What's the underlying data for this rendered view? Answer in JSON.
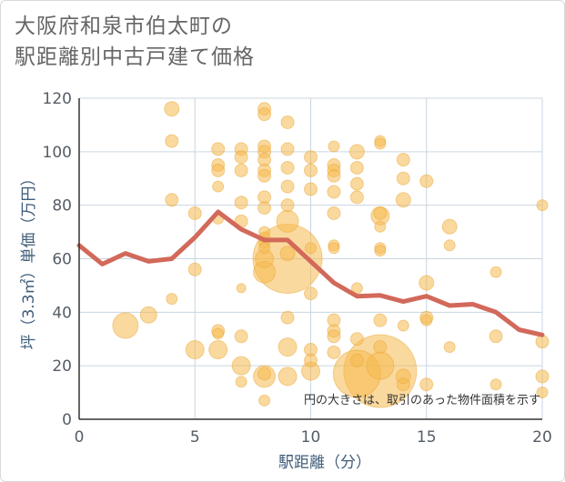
{
  "title": {
    "line1": "大阪府和泉市伯太町の",
    "line2": "駅距離別中古戸建て価格"
  },
  "colors": {
    "bubble_fill": "#f5b94f",
    "bubble_stroke": "#e9a73a",
    "line": "#d2695a",
    "grid": "#c9d6e0",
    "axis": "#333333"
  },
  "chart_data": {
    "type": "scatter",
    "title": "大阪府和泉市伯太町の駅距離別中古戸建て価格",
    "xlabel": "駅距離（分）",
    "ylabel": "坪（3.3㎡）単価（万円）",
    "xlim": [
      0,
      20
    ],
    "ylim": [
      0,
      120
    ],
    "xticks": [
      "0",
      "5",
      "10",
      "15",
      "20"
    ],
    "yticks": [
      "0",
      "20",
      "40",
      "60",
      "80",
      "100",
      "120"
    ],
    "grid": true,
    "note": "円の大きさは、取引のあった物件面積を示す",
    "bubbles": [
      {
        "x": 4,
        "y": 116,
        "r": 8
      },
      {
        "x": 4,
        "y": 104,
        "r": 7
      },
      {
        "x": 4,
        "y": 82,
        "r": 7
      },
      {
        "x": 4,
        "y": 45,
        "r": 6
      },
      {
        "x": 2,
        "y": 35,
        "r": 14
      },
      {
        "x": 3,
        "y": 39,
        "r": 9
      },
      {
        "x": 5,
        "y": 77,
        "r": 7
      },
      {
        "x": 5,
        "y": 56,
        "r": 7
      },
      {
        "x": 5,
        "y": 26,
        "r": 10
      },
      {
        "x": 6,
        "y": 101,
        "r": 7
      },
      {
        "x": 6,
        "y": 95,
        "r": 7
      },
      {
        "x": 6,
        "y": 93,
        "r": 7
      },
      {
        "x": 6,
        "y": 87,
        "r": 6
      },
      {
        "x": 6,
        "y": 75,
        "r": 6
      },
      {
        "x": 6,
        "y": 33,
        "r": 7
      },
      {
        "x": 6,
        "y": 32,
        "r": 6
      },
      {
        "x": 6,
        "y": 26,
        "r": 10
      },
      {
        "x": 7,
        "y": 101,
        "r": 7
      },
      {
        "x": 7,
        "y": 98,
        "r": 7
      },
      {
        "x": 7,
        "y": 93,
        "r": 7
      },
      {
        "x": 7,
        "y": 81,
        "r": 7
      },
      {
        "x": 7,
        "y": 74,
        "r": 7
      },
      {
        "x": 7,
        "y": 49,
        "r": 5
      },
      {
        "x": 7,
        "y": 31,
        "r": 7
      },
      {
        "x": 7,
        "y": 20,
        "r": 10
      },
      {
        "x": 7,
        "y": 14,
        "r": 6
      },
      {
        "x": 8,
        "y": 116,
        "r": 7
      },
      {
        "x": 8,
        "y": 114,
        "r": 7
      },
      {
        "x": 8,
        "y": 102,
        "r": 7
      },
      {
        "x": 8,
        "y": 100,
        "r": 7
      },
      {
        "x": 8,
        "y": 97,
        "r": 7
      },
      {
        "x": 8,
        "y": 93,
        "r": 7
      },
      {
        "x": 8,
        "y": 91,
        "r": 7
      },
      {
        "x": 8,
        "y": 83,
        "r": 7
      },
      {
        "x": 8,
        "y": 79,
        "r": 7
      },
      {
        "x": 8,
        "y": 70,
        "r": 6
      },
      {
        "x": 8,
        "y": 68,
        "r": 6
      },
      {
        "x": 8,
        "y": 66,
        "r": 6
      },
      {
        "x": 8,
        "y": 64,
        "r": 6
      },
      {
        "x": 8,
        "y": 60,
        "r": 10
      },
      {
        "x": 8,
        "y": 55,
        "r": 12
      },
      {
        "x": 8,
        "y": 17,
        "r": 7
      },
      {
        "x": 8,
        "y": 16,
        "r": 12
      },
      {
        "x": 8,
        "y": 7,
        "r": 6
      },
      {
        "x": 9,
        "y": 111,
        "r": 7
      },
      {
        "x": 9,
        "y": 101,
        "r": 7
      },
      {
        "x": 9,
        "y": 94,
        "r": 7
      },
      {
        "x": 9,
        "y": 87,
        "r": 7
      },
      {
        "x": 9,
        "y": 80,
        "r": 7
      },
      {
        "x": 9,
        "y": 74,
        "r": 12
      },
      {
        "x": 9,
        "y": 60,
        "r": 38
      },
      {
        "x": 9,
        "y": 62,
        "r": 8
      },
      {
        "x": 9,
        "y": 38,
        "r": 7
      },
      {
        "x": 9,
        "y": 27,
        "r": 10
      },
      {
        "x": 9,
        "y": 16,
        "r": 10
      },
      {
        "x": 10,
        "y": 98,
        "r": 7
      },
      {
        "x": 10,
        "y": 93,
        "r": 7
      },
      {
        "x": 10,
        "y": 86,
        "r": 7
      },
      {
        "x": 10,
        "y": 64,
        "r": 6
      },
      {
        "x": 10,
        "y": 47,
        "r": 7
      },
      {
        "x": 10,
        "y": 26,
        "r": 7
      },
      {
        "x": 10,
        "y": 22,
        "r": 7
      },
      {
        "x": 10,
        "y": 18,
        "r": 10
      },
      {
        "x": 11,
        "y": 102,
        "r": 6
      },
      {
        "x": 11,
        "y": 95,
        "r": 7
      },
      {
        "x": 11,
        "y": 93,
        "r": 7
      },
      {
        "x": 11,
        "y": 91,
        "r": 7
      },
      {
        "x": 11,
        "y": 85,
        "r": 7
      },
      {
        "x": 11,
        "y": 77,
        "r": 7
      },
      {
        "x": 11,
        "y": 65,
        "r": 6
      },
      {
        "x": 11,
        "y": 64,
        "r": 6
      },
      {
        "x": 11,
        "y": 37,
        "r": 7
      },
      {
        "x": 11,
        "y": 33,
        "r": 7
      },
      {
        "x": 11,
        "y": 31,
        "r": 7
      },
      {
        "x": 11,
        "y": 25,
        "r": 7
      },
      {
        "x": 12,
        "y": 100,
        "r": 8
      },
      {
        "x": 12,
        "y": 94,
        "r": 7
      },
      {
        "x": 12,
        "y": 88,
        "r": 7
      },
      {
        "x": 12,
        "y": 83,
        "r": 7
      },
      {
        "x": 12,
        "y": 49,
        "r": 6
      },
      {
        "x": 12,
        "y": 30,
        "r": 7
      },
      {
        "x": 12,
        "y": 22,
        "r": 7
      },
      {
        "x": 12,
        "y": 17,
        "r": 26
      },
      {
        "x": 13,
        "y": 104,
        "r": 6
      },
      {
        "x": 13,
        "y": 103,
        "r": 6
      },
      {
        "x": 13,
        "y": 77,
        "r": 7
      },
      {
        "x": 13,
        "y": 76,
        "r": 10
      },
      {
        "x": 13,
        "y": 72,
        "r": 6
      },
      {
        "x": 13,
        "y": 64,
        "r": 6
      },
      {
        "x": 13,
        "y": 63,
        "r": 6
      },
      {
        "x": 13,
        "y": 37,
        "r": 7
      },
      {
        "x": 13,
        "y": 27,
        "r": 7
      },
      {
        "x": 13,
        "y": 18,
        "r": 40
      },
      {
        "x": 13,
        "y": 20,
        "r": 15
      },
      {
        "x": 14,
        "y": 97,
        "r": 7
      },
      {
        "x": 14,
        "y": 90,
        "r": 7
      },
      {
        "x": 14,
        "y": 82,
        "r": 8
      },
      {
        "x": 14,
        "y": 35,
        "r": 6
      },
      {
        "x": 14,
        "y": 16,
        "r": 8
      },
      {
        "x": 14,
        "y": 13,
        "r": 7
      },
      {
        "x": 15,
        "y": 89,
        "r": 7
      },
      {
        "x": 15,
        "y": 51,
        "r": 8
      },
      {
        "x": 15,
        "y": 38,
        "r": 7
      },
      {
        "x": 15,
        "y": 37,
        "r": 6
      },
      {
        "x": 15,
        "y": 13,
        "r": 7
      },
      {
        "x": 16,
        "y": 72,
        "r": 8
      },
      {
        "x": 16,
        "y": 65,
        "r": 6
      },
      {
        "x": 16,
        "y": 27,
        "r": 6
      },
      {
        "x": 18,
        "y": 55,
        "r": 6
      },
      {
        "x": 18,
        "y": 31,
        "r": 7
      },
      {
        "x": 18,
        "y": 13,
        "r": 6
      },
      {
        "x": 20,
        "y": 80,
        "r": 6
      },
      {
        "x": 20,
        "y": 29,
        "r": 7
      },
      {
        "x": 20,
        "y": 16,
        "r": 7
      },
      {
        "x": 20,
        "y": 10,
        "r": 6
      }
    ],
    "series": [
      {
        "type": "line",
        "x": [
          0,
          1,
          2,
          3,
          4,
          5,
          6,
          7,
          8,
          9,
          10,
          11,
          12,
          13,
          14,
          15,
          16,
          17,
          18,
          19,
          20
        ],
        "values": [
          65,
          58,
          62,
          59,
          60,
          68,
          77.5,
          71,
          67,
          67,
          59,
          51,
          46,
          46.3,
          44,
          46,
          42.5,
          43,
          40,
          33.5,
          31.5
        ]
      }
    ]
  }
}
